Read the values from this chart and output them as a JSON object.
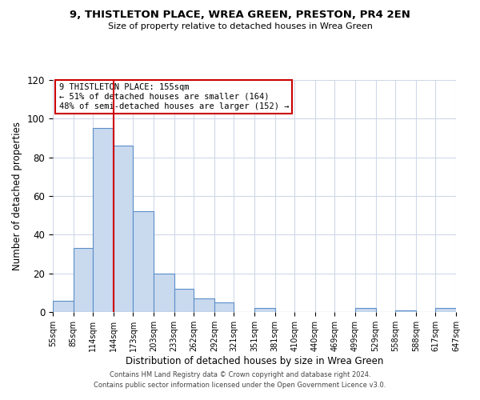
{
  "title": "9, THISTLETON PLACE, WREA GREEN, PRESTON, PR4 2EN",
  "subtitle": "Size of property relative to detached houses in Wrea Green",
  "xlabel": "Distribution of detached houses by size in Wrea Green",
  "ylabel": "Number of detached properties",
  "bar_color": "#c9d9ee",
  "bar_edge_color": "#5b8fc9",
  "bin_edges": [
    55,
    85,
    114,
    144,
    173,
    203,
    233,
    262,
    292,
    321,
    351,
    381,
    410,
    440,
    469,
    499,
    529,
    558,
    588,
    617,
    647
  ],
  "bin_labels": [
    "55sqm",
    "85sqm",
    "114sqm",
    "144sqm",
    "173sqm",
    "203sqm",
    "233sqm",
    "262sqm",
    "292sqm",
    "321sqm",
    "351sqm",
    "381sqm",
    "410sqm",
    "440sqm",
    "469sqm",
    "499sqm",
    "529sqm",
    "558sqm",
    "588sqm",
    "617sqm",
    "647sqm"
  ],
  "bar_heights": [
    6,
    33,
    95,
    86,
    52,
    20,
    12,
    7,
    5,
    0,
    2,
    0,
    0,
    0,
    0,
    2,
    0,
    1,
    0,
    2
  ],
  "ylim": [
    0,
    120
  ],
  "yticks": [
    0,
    20,
    40,
    60,
    80,
    100,
    120
  ],
  "vline_x": 144,
  "vline_color": "#cc0000",
  "annotation_title": "9 THISTLETON PLACE: 155sqm",
  "annotation_line1": "← 51% of detached houses are smaller (164)",
  "annotation_line2": "48% of semi-detached houses are larger (152) →",
  "annotation_box_color": "#ffffff",
  "annotation_box_edge": "#cc0000",
  "footer1": "Contains HM Land Registry data © Crown copyright and database right 2024.",
  "footer2": "Contains public sector information licensed under the Open Government Licence v3.0.",
  "background_color": "#ffffff",
  "grid_color": "#d0d8e8"
}
